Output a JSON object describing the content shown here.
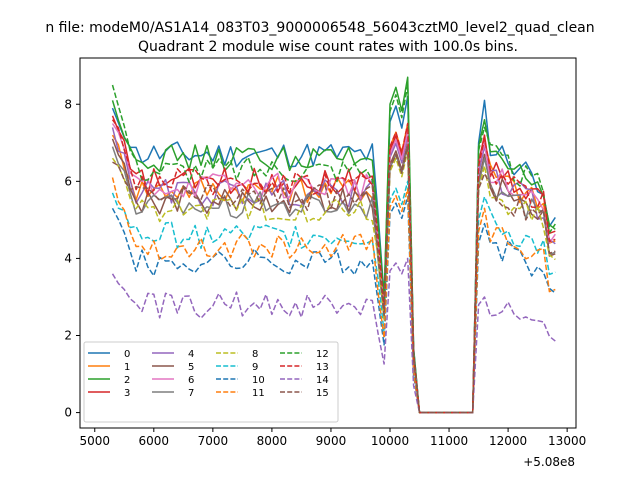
{
  "chart_data": {
    "type": "line",
    "suptitle": "n file: modeM0/AS1A14_083T03_9000006548_56043cztM0_level2_quad_clean",
    "title": "Quadrant 2 module wise count rates with 100.0s bins.",
    "xlabel": "",
    "ylabel": "",
    "x_offset_label": "+5.08e8",
    "xlim": [
      4750,
      13150
    ],
    "ylim": [
      -0.4,
      9.2
    ],
    "xticks": [
      5000,
      6000,
      7000,
      8000,
      9000,
      10000,
      11000,
      12000,
      13000
    ],
    "xtick_labels": [
      "5000",
      "6000",
      "7000",
      "8000",
      "9000",
      "10000",
      "11000",
      "12000",
      "13000"
    ],
    "yticks": [
      0,
      2,
      4,
      6,
      8
    ],
    "ytick_labels": [
      "0",
      "2",
      "4",
      "6",
      "8"
    ],
    "grid": false,
    "legend_location": "lower-left",
    "legend_columns": 4,
    "x_start": 5300,
    "x_step": 100,
    "gap_start": 10500,
    "gap_end": 11400,
    "series": [
      {
        "name": "0",
        "color": "#1f77b4",
        "dash": "solid",
        "level_before": 6.7,
        "level_after": 7.0,
        "first": 7.9,
        "peak": 8.2,
        "peak2": 8.1
      },
      {
        "name": "1",
        "color": "#ff7f0e",
        "dash": "solid",
        "level_before": 5.8,
        "level_after": 6.3,
        "first": 7.2,
        "peak": 7.5,
        "peak2": 7.0
      },
      {
        "name": "2",
        "color": "#2ca02c",
        "dash": "solid",
        "level_before": 6.6,
        "level_after": 6.9,
        "first": 8.1,
        "peak": 8.7,
        "peak2": 7.6
      },
      {
        "name": "3",
        "color": "#d62728",
        "dash": "solid",
        "level_before": 6.0,
        "level_after": 6.5,
        "first": 7.7,
        "peak": 7.4,
        "peak2": 7.2
      },
      {
        "name": "4",
        "color": "#9467bd",
        "dash": "solid",
        "level_before": 5.7,
        "level_after": 6.2,
        "first": 7.4,
        "peak": 7.2,
        "peak2": 6.9
      },
      {
        "name": "5",
        "color": "#8c564b",
        "dash": "solid",
        "level_before": 5.5,
        "level_after": 6.0,
        "first": 7.1,
        "peak": 7.0,
        "peak2": 6.7
      },
      {
        "name": "6",
        "color": "#e377c2",
        "dash": "solid",
        "level_before": 5.9,
        "level_after": 6.4,
        "first": 7.5,
        "peak": 7.3,
        "peak2": 7.0
      },
      {
        "name": "7",
        "color": "#7f7f7f",
        "dash": "solid",
        "level_before": 5.4,
        "level_after": 5.9,
        "first": 6.9,
        "peak": 6.9,
        "peak2": 6.6
      },
      {
        "name": "8",
        "color": "#bcbd22",
        "dash": "dashed",
        "level_before": 5.3,
        "level_after": 5.8,
        "first": 6.6,
        "peak": 6.8,
        "peak2": 6.4
      },
      {
        "name": "9",
        "color": "#17becf",
        "dash": "dashed",
        "level_before": 4.6,
        "level_after": 5.0,
        "first": 5.7,
        "peak": 6.0,
        "peak2": 5.6
      },
      {
        "name": "10",
        "color": "#1f77b4",
        "dash": "dashed",
        "level_before": 3.9,
        "level_after": 4.4,
        "first": 5.3,
        "peak": 5.6,
        "peak2": 4.9
      },
      {
        "name": "11",
        "color": "#ff7f0e",
        "dash": "dashed",
        "level_before": 4.3,
        "level_after": 4.7,
        "first": 6.1,
        "peak": 5.8,
        "peak2": 5.3
      },
      {
        "name": "12",
        "color": "#2ca02c",
        "dash": "dashed",
        "level_before": 6.3,
        "level_after": 6.8,
        "first": 8.5,
        "peak": 8.5,
        "peak2": 7.4
      },
      {
        "name": "13",
        "color": "#d62728",
        "dash": "dashed",
        "level_before": 6.0,
        "level_after": 6.4,
        "first": 7.6,
        "peak": 7.5,
        "peak2": 7.1
      },
      {
        "name": "14",
        "color": "#9467bd",
        "dash": "dashed",
        "level_before": 2.8,
        "level_after": 2.8,
        "first": 3.6,
        "peak": 4.0,
        "peak2": 3.0
      },
      {
        "name": "15",
        "color": "#8c564b",
        "dash": "dashed",
        "level_before": 5.6,
        "level_after": 5.8,
        "first": 6.5,
        "peak": 6.9,
        "peak2": 6.2
      }
    ]
  }
}
